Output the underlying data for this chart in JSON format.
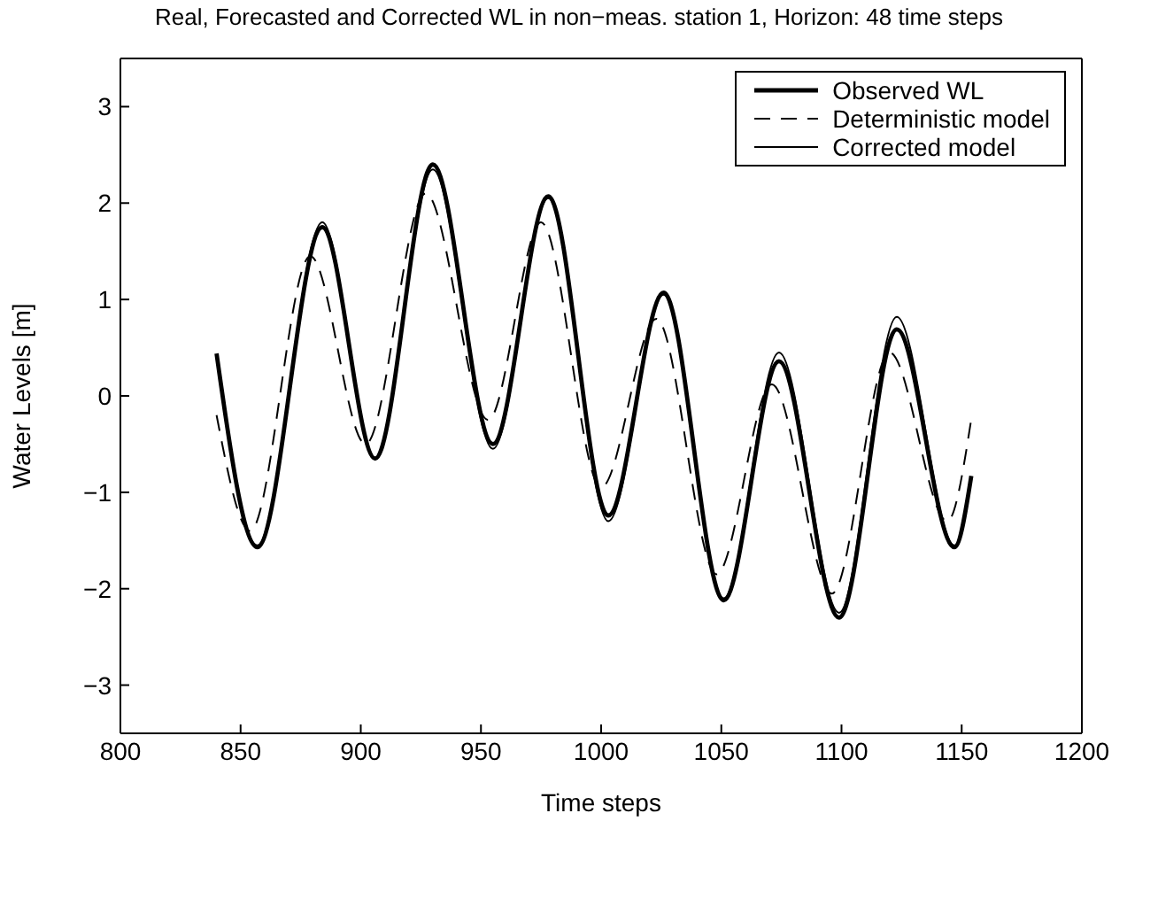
{
  "chart_data": {
    "type": "line",
    "title": "Real, Forecasted and Corrected WL in non−meas. station 1, Horizon: 48 time steps",
    "xlabel": "Time steps",
    "ylabel": "Water Levels [m]",
    "xlim": [
      800,
      1200
    ],
    "xticks": [
      800,
      850,
      900,
      950,
      1000,
      1050,
      1100,
      1150,
      1200
    ],
    "ylim": [
      -3.5,
      3.5
    ],
    "yticks": [
      -3,
      -2,
      -1,
      0,
      1,
      2,
      3
    ],
    "grid": false,
    "legend": "top right",
    "marker": "none",
    "series": [
      {
        "name": "Observed WL",
        "color": "#000000",
        "line_style": "solid",
        "x": [
          840,
          857,
          884,
          906,
          930,
          955,
          978,
          1003,
          1026,
          1051,
          1074,
          1099,
          1123,
          1147,
          1154
        ],
        "values": [
          0.44,
          -1.57,
          1.75,
          -0.65,
          2.4,
          -0.5,
          2.07,
          -1.24,
          1.07,
          -2.12,
          0.36,
          -2.3,
          0.69,
          -1.57,
          -0.83
        ]
      },
      {
        "name": "Deterministic model",
        "color": "#000000",
        "line_style": "dashed",
        "x": [
          840,
          854,
          879,
          902,
          927,
          953,
          975,
          1000,
          1023,
          1048,
          1071,
          1096,
          1120,
          1144,
          1154
        ],
        "values": [
          -0.2,
          -1.4,
          1.45,
          -0.5,
          2.1,
          -0.25,
          1.8,
          -0.95,
          0.8,
          -1.85,
          0.12,
          -2.05,
          0.45,
          -1.3,
          -0.24
        ]
      },
      {
        "name": "Corrected model",
        "color": "#000000",
        "line_style": "solid",
        "x": [
          840,
          857,
          884,
          906,
          930,
          955,
          978,
          1003,
          1026,
          1051,
          1074,
          1099,
          1123,
          1147,
          1154
        ],
        "values": [
          0.4,
          -1.55,
          1.8,
          -0.65,
          2.35,
          -0.55,
          2.05,
          -1.3,
          1.05,
          -2.1,
          0.45,
          -2.25,
          0.82,
          -1.55,
          -0.85
        ]
      }
    ]
  }
}
